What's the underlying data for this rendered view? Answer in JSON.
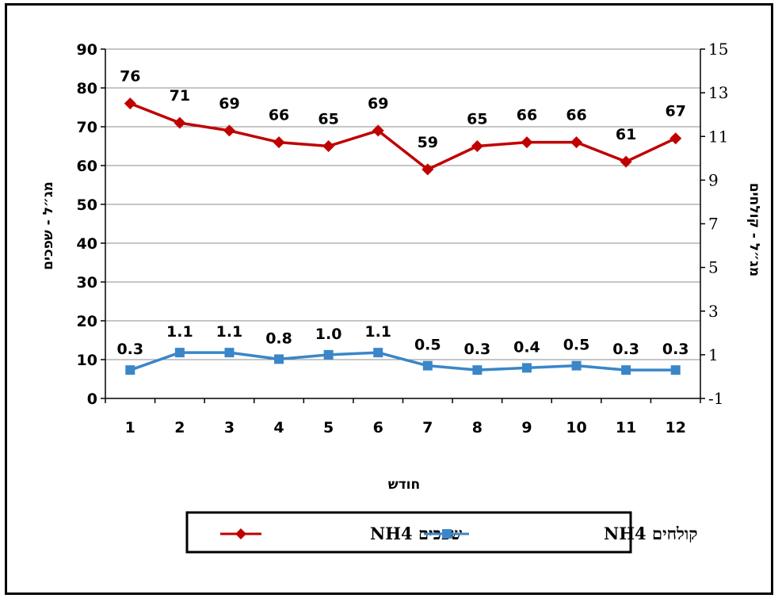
{
  "chart_data": {
    "type": "line",
    "categories": [
      "1",
      "2",
      "3",
      "4",
      "5",
      "6",
      "7",
      "8",
      "9",
      "10",
      "11",
      "12"
    ],
    "xlabel": "חודש",
    "ylabel_left": "מג״ל - שפכים",
    "ylabel_right": "מג״ל - קולחים",
    "ylim_left": [
      0,
      90
    ],
    "yticks_left": [
      "0",
      "10",
      "20",
      "30",
      "40",
      "50",
      "60",
      "70",
      "80",
      "90"
    ],
    "ylim_right": [
      -1,
      15
    ],
    "yticks_right": [
      "-1",
      "1",
      "3",
      "5",
      "7",
      "9",
      "11",
      "13",
      "15"
    ],
    "grid": true,
    "legend_position": "bottom",
    "series": [
      {
        "name": "שפכים NH4",
        "axis": "left",
        "color": "#c00000",
        "marker": "diamond",
        "values": [
          76,
          71,
          69,
          66,
          65,
          69,
          59,
          65,
          66,
          66,
          61,
          67
        ],
        "labels": [
          "76",
          "71",
          "69",
          "66",
          "65",
          "69",
          "59",
          "65",
          "66",
          "66",
          "61",
          "67"
        ]
      },
      {
        "name": "קולחים NH4",
        "axis": "right",
        "color": "#3a86c8",
        "marker": "square",
        "values": [
          0.3,
          1.1,
          1.1,
          0.8,
          1.0,
          1.1,
          0.5,
          0.3,
          0.4,
          0.5,
          0.3,
          0.3
        ],
        "labels": [
          "0.3",
          "1.1",
          "1.1",
          "0.8",
          "1.0",
          "1.1",
          "0.5",
          "0.3",
          "0.4",
          "0.5",
          "0.3",
          "0.3"
        ]
      }
    ]
  }
}
